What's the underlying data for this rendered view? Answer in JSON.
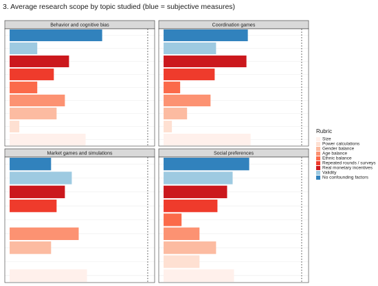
{
  "chart_data": {
    "type": "bar",
    "title": "3. Average research scope by topic studied (blue = subjective measures)",
    "legend_title": "Rubric",
    "categories": [
      "Size",
      "Power calculations",
      "Gender balance",
      "Age balance",
      "Ethnic balance",
      "Repeated rounds / surveys",
      "Real monetary incentives",
      "Validity",
      "No confounding factors"
    ],
    "colors": [
      "#fff0eb",
      "#fee0d2",
      "#fcbba1",
      "#fc9272",
      "#fb6a4a",
      "#ef3b2c",
      "#cb181d",
      "#9ecae1",
      "#3182bd"
    ],
    "xlim": [
      -0.035,
      1.05
    ],
    "reference_line": 1,
    "grid": true,
    "facets": [
      {
        "title": "Behavior and cognitive bias",
        "values": [
          0.55,
          0.07,
          0.34,
          0.4,
          0.2,
          0.32,
          0.43,
          0.2,
          0.67
        ]
      },
      {
        "title": "Coordination games",
        "values": [
          0.63,
          0.06,
          0.17,
          0.34,
          0.12,
          0.37,
          0.6,
          0.38,
          0.61
        ]
      },
      {
        "title": "Market games and simulations",
        "values": [
          0.56,
          null,
          0.3,
          0.5,
          null,
          0.34,
          0.4,
          0.45,
          0.3
        ]
      },
      {
        "title": "Social preferences",
        "values": [
          0.51,
          0.26,
          0.38,
          0.26,
          0.13,
          0.39,
          0.46,
          0.5,
          0.62
        ]
      }
    ]
  }
}
